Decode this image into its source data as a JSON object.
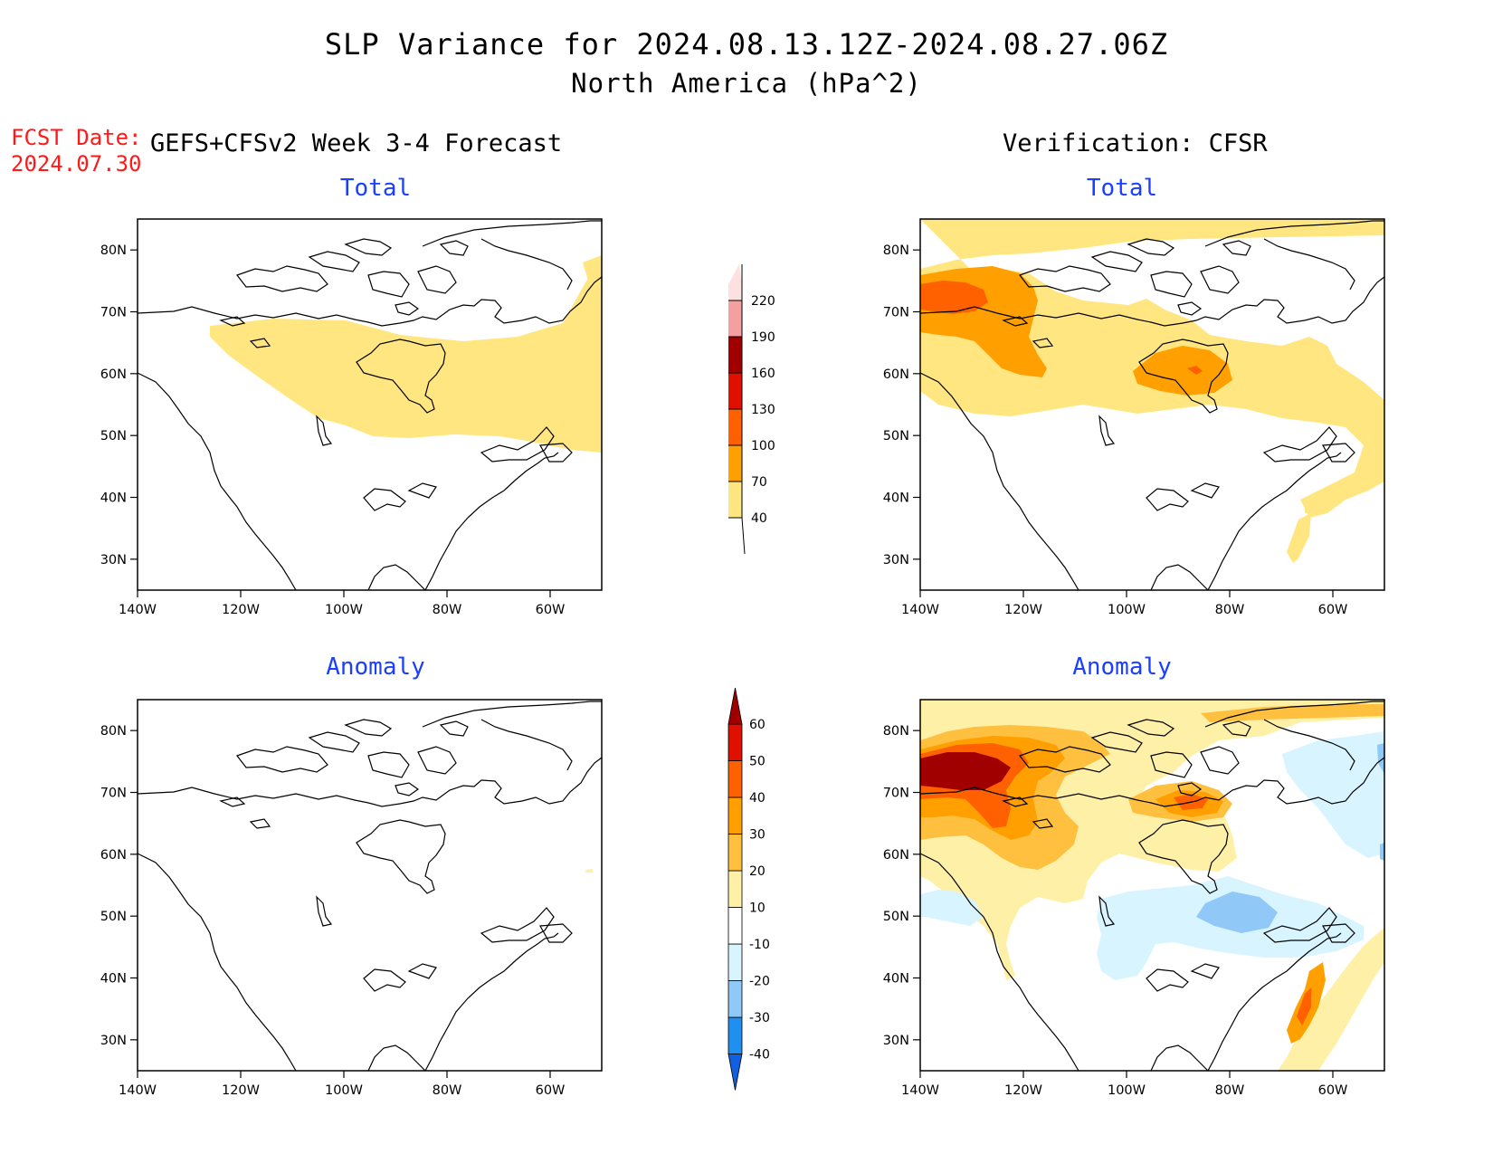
{
  "header": {
    "title": "SLP Variance for 2024.08.13.12Z-2024.08.27.06Z",
    "subtitle": "North America (hPa^2)",
    "fcst_label": "FCST Date:",
    "fcst_date": "2024.07.30",
    "left_heading": "GEFS+CFSv2 Week 3-4 Forecast",
    "right_heading": "Verification: CFSR"
  },
  "panels": {
    "fc_total": {
      "title": "Total"
    },
    "vf_total": {
      "title": "Total"
    },
    "fc_anomaly": {
      "title": "Anomaly"
    },
    "vf_anomaly": {
      "title": "Anomaly"
    }
  },
  "axes": {
    "lat_labels": [
      "80N",
      "70N",
      "60N",
      "50N",
      "40N",
      "30N"
    ],
    "lon_labels": [
      "140W",
      "120W",
      "100W",
      "80W",
      "60W"
    ]
  },
  "colorbars": {
    "total": {
      "levels": [
        "40",
        "70",
        "100",
        "130",
        "160",
        "190",
        "220"
      ],
      "colors": [
        "#ffe680",
        "#ffa000",
        "#ff6000",
        "#e01000",
        "#a00000",
        "#f4a0a0",
        "#fde0e0"
      ]
    },
    "anomaly": {
      "levels": [
        "-40",
        "-30",
        "-20",
        "-10",
        "10",
        "20",
        "30",
        "40",
        "50",
        "60"
      ],
      "colors": [
        "#1060e0",
        "#2090f0",
        "#90c8f8",
        "#d8f4ff",
        "#ffffff",
        "#fff0a8",
        "#ffc040",
        "#ffa000",
        "#ff6000",
        "#e01000",
        "#a00000"
      ]
    }
  }
}
